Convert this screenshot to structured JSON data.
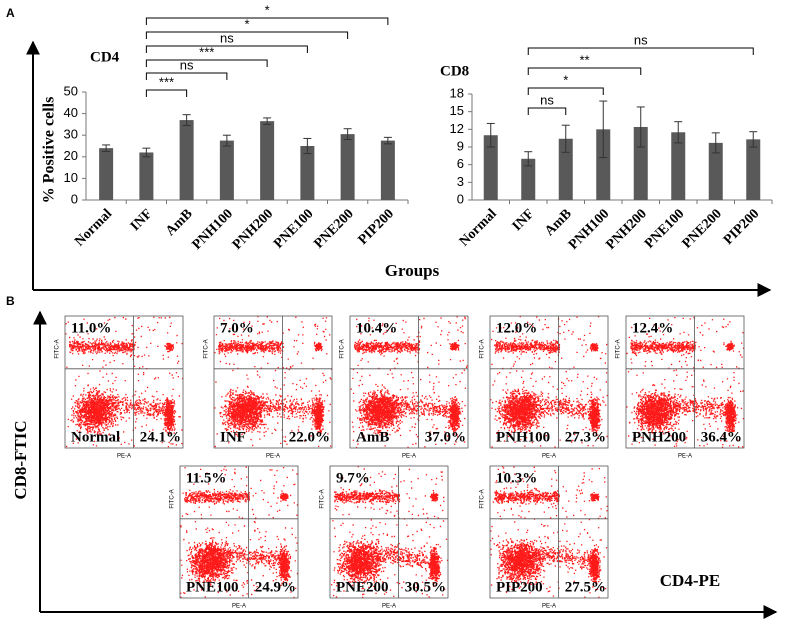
{
  "panel_a": {
    "label": "A",
    "y_label": "% Positive cells",
    "x_label": "Groups"
  },
  "chart_data": [
    {
      "type": "bar",
      "title": "CD4",
      "categories": [
        "Normal",
        "INF",
        "AmB",
        "PNH100",
        "PNH200",
        "PNE100",
        "PNE200",
        "PIP200"
      ],
      "values": [
        24,
        22,
        37,
        27.5,
        36.5,
        25,
        30.5,
        27.5
      ],
      "errors": [
        1.5,
        2,
        2.5,
        2.5,
        1.5,
        3.5,
        2.5,
        1.5
      ],
      "color": "#595959",
      "ylim": [
        0,
        50
      ],
      "yticks": [
        0,
        10,
        20,
        30,
        40,
        50
      ],
      "comparisons": [
        {
          "from": "INF",
          "to": "AmB",
          "label": "***"
        },
        {
          "from": "INF",
          "to": "PNH100",
          "label": "ns"
        },
        {
          "from": "INF",
          "to": "PNH200",
          "label": "***"
        },
        {
          "from": "INF",
          "to": "PNE100",
          "label": "ns"
        },
        {
          "from": "INF",
          "to": "PNE200",
          "label": "*"
        },
        {
          "from": "INF",
          "to": "PIP200",
          "label": "*"
        }
      ]
    },
    {
      "type": "bar",
      "title": "CD8",
      "categories": [
        "Normal",
        "INF",
        "AmB",
        "PNH100",
        "PNH200",
        "PNE100",
        "PNE200",
        "PIP200"
      ],
      "values": [
        11,
        7,
        10.4,
        12,
        12.4,
        11.5,
        9.7,
        10.3
      ],
      "errors": [
        2,
        1.2,
        2.3,
        4.8,
        3.4,
        1.8,
        1.7,
        1.3
      ],
      "color": "#595959",
      "ylim": [
        0,
        18
      ],
      "yticks": [
        0,
        3,
        6,
        9,
        12,
        15,
        18
      ],
      "comparisons": [
        {
          "from": "INF",
          "to": "AmB",
          "label": "ns"
        },
        {
          "from": "INF",
          "to": "PNH100",
          "label": "*"
        },
        {
          "from": "INF",
          "to": "PNH200",
          "label": "**"
        },
        {
          "from": "INF",
          "to": "PIP200",
          "label": "ns"
        }
      ]
    }
  ],
  "panel_b": {
    "label": "B",
    "y_label": "CD8-FTIC",
    "x_label": "CD4-PE",
    "plot_x_axis": "PE-A",
    "plot_y_axis": "FITC-A",
    "plots": [
      {
        "name": "Normal",
        "upper_left": "11.0%",
        "lower_right": "24.1%"
      },
      {
        "name": "INF",
        "upper_left": "7.0%",
        "lower_right": "22.0%"
      },
      {
        "name": "AmB",
        "upper_left": "10.4%",
        "lower_right": "37.0%"
      },
      {
        "name": "PNH100",
        "upper_left": "12.0%",
        "lower_right": "27.3%"
      },
      {
        "name": "PNH200",
        "upper_left": "12.4%",
        "lower_right": "36.4%"
      },
      {
        "name": "PNE100",
        "upper_left": "11.5%",
        "lower_right": "24.9%"
      },
      {
        "name": "PNE200",
        "upper_left": "9.7%",
        "lower_right": "30.5%"
      },
      {
        "name": "PIP200",
        "upper_left": "10.3%",
        "lower_right": "27.5%"
      }
    ]
  }
}
